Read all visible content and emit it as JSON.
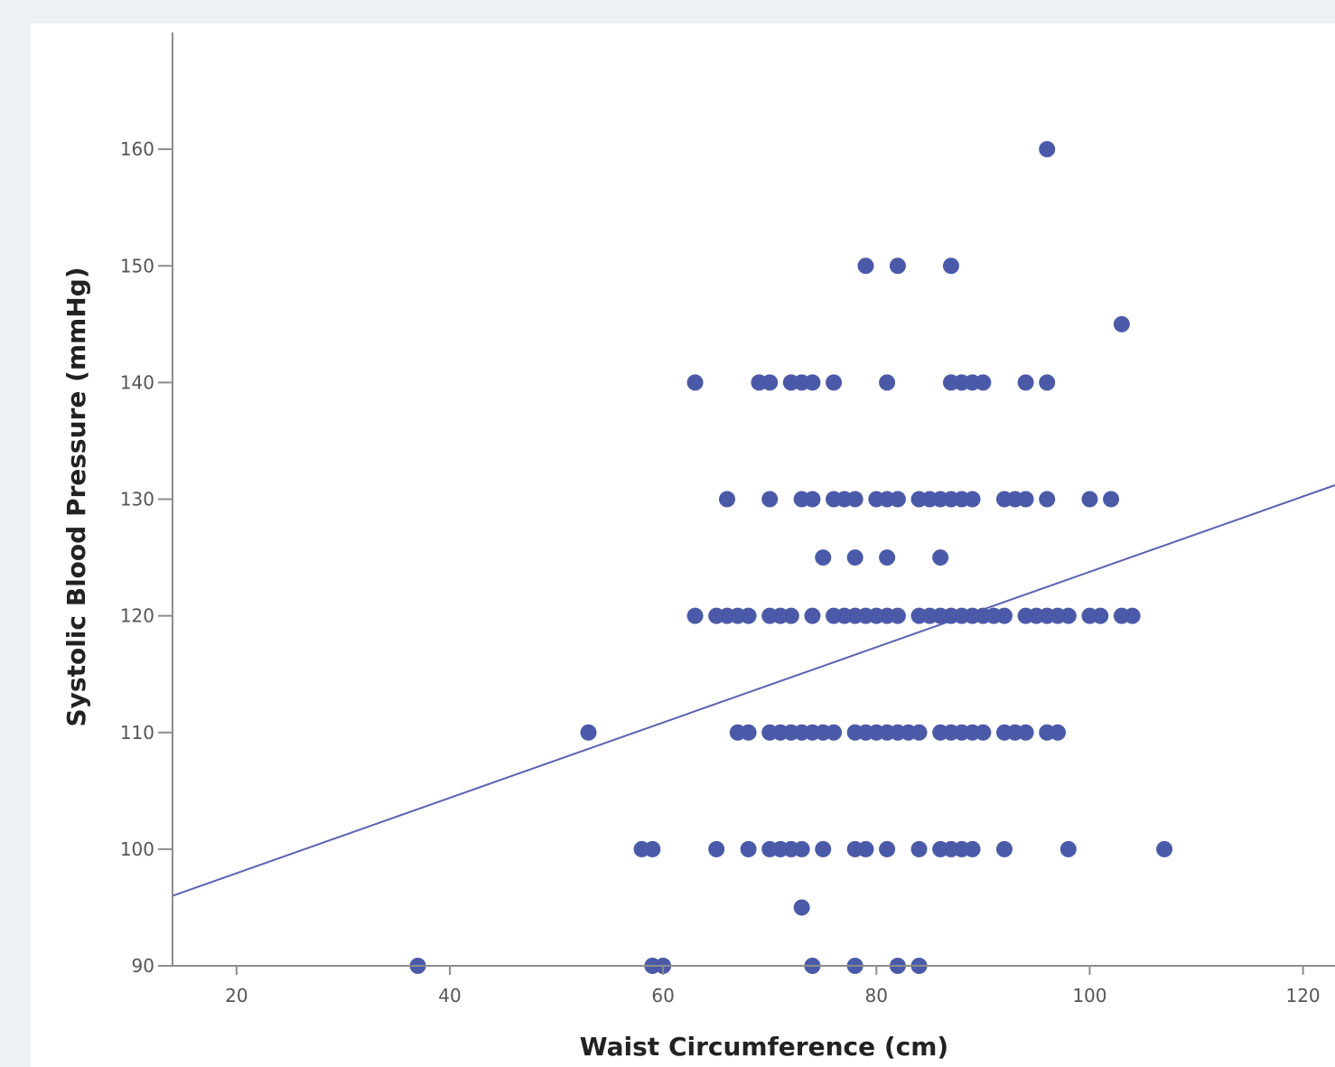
{
  "chart_data": {
    "type": "scatter",
    "title": "",
    "xlabel": "Waist Circumference (cm)",
    "ylabel": "Systolic Blood Pressure (mmHg)",
    "xlim": [
      14,
      123
    ],
    "ylim": [
      90,
      170
    ],
    "x_ticks": [
      20,
      40,
      60,
      80,
      100,
      120
    ],
    "y_ticks": [
      90,
      100,
      110,
      120,
      130,
      140,
      150,
      160
    ],
    "grid": false,
    "legend": "none",
    "point_color": "#4a5aa8",
    "line_color": "#5a63b0",
    "fit_line": {
      "x": [
        14,
        123
      ],
      "y": [
        96,
        131.2
      ]
    },
    "series": [
      {
        "points": [
          [
            96,
            160
          ],
          [
            79,
            150
          ],
          [
            82,
            150
          ],
          [
            87,
            150
          ],
          [
            103,
            145
          ],
          [
            63,
            140
          ],
          [
            69,
            140
          ],
          [
            70,
            140
          ],
          [
            72,
            140
          ],
          [
            73,
            140
          ],
          [
            74,
            140
          ],
          [
            76,
            140
          ],
          [
            81,
            140
          ],
          [
            87,
            140
          ],
          [
            88,
            140
          ],
          [
            89,
            140
          ],
          [
            90,
            140
          ],
          [
            94,
            140
          ],
          [
            96,
            140
          ],
          [
            66,
            130
          ],
          [
            70,
            130
          ],
          [
            73,
            130
          ],
          [
            74,
            130
          ],
          [
            76,
            130
          ],
          [
            77,
            130
          ],
          [
            78,
            130
          ],
          [
            80,
            130
          ],
          [
            81,
            130
          ],
          [
            82,
            130
          ],
          [
            84,
            130
          ],
          [
            85,
            130
          ],
          [
            86,
            130
          ],
          [
            87,
            130
          ],
          [
            88,
            130
          ],
          [
            89,
            130
          ],
          [
            92,
            130
          ],
          [
            93,
            130
          ],
          [
            94,
            130
          ],
          [
            96,
            130
          ],
          [
            100,
            130
          ],
          [
            102,
            130
          ],
          [
            75,
            125
          ],
          [
            78,
            125
          ],
          [
            81,
            125
          ],
          [
            86,
            125
          ],
          [
            63,
            120
          ],
          [
            65,
            120
          ],
          [
            66,
            120
          ],
          [
            67,
            120
          ],
          [
            68,
            120
          ],
          [
            70,
            120
          ],
          [
            71,
            120
          ],
          [
            72,
            120
          ],
          [
            74,
            120
          ],
          [
            76,
            120
          ],
          [
            77,
            120
          ],
          [
            78,
            120
          ],
          [
            79,
            120
          ],
          [
            80,
            120
          ],
          [
            81,
            120
          ],
          [
            82,
            120
          ],
          [
            84,
            120
          ],
          [
            85,
            120
          ],
          [
            86,
            120
          ],
          [
            87,
            120
          ],
          [
            88,
            120
          ],
          [
            89,
            120
          ],
          [
            90,
            120
          ],
          [
            91,
            120
          ],
          [
            92,
            120
          ],
          [
            94,
            120
          ],
          [
            95,
            120
          ],
          [
            96,
            120
          ],
          [
            97,
            120
          ],
          [
            98,
            120
          ],
          [
            100,
            120
          ],
          [
            101,
            120
          ],
          [
            103,
            120
          ],
          [
            104,
            120
          ],
          [
            53,
            110
          ],
          [
            67,
            110
          ],
          [
            68,
            110
          ],
          [
            70,
            110
          ],
          [
            71,
            110
          ],
          [
            72,
            110
          ],
          [
            73,
            110
          ],
          [
            74,
            110
          ],
          [
            75,
            110
          ],
          [
            76,
            110
          ],
          [
            78,
            110
          ],
          [
            79,
            110
          ],
          [
            80,
            110
          ],
          [
            81,
            110
          ],
          [
            82,
            110
          ],
          [
            83,
            110
          ],
          [
            84,
            110
          ],
          [
            86,
            110
          ],
          [
            87,
            110
          ],
          [
            88,
            110
          ],
          [
            89,
            110
          ],
          [
            90,
            110
          ],
          [
            92,
            110
          ],
          [
            93,
            110
          ],
          [
            94,
            110
          ],
          [
            96,
            110
          ],
          [
            97,
            110
          ],
          [
            58,
            100
          ],
          [
            59,
            100
          ],
          [
            65,
            100
          ],
          [
            68,
            100
          ],
          [
            70,
            100
          ],
          [
            71,
            100
          ],
          [
            72,
            100
          ],
          [
            73,
            100
          ],
          [
            75,
            100
          ],
          [
            78,
            100
          ],
          [
            79,
            100
          ],
          [
            81,
            100
          ],
          [
            84,
            100
          ],
          [
            86,
            100
          ],
          [
            87,
            100
          ],
          [
            88,
            100
          ],
          [
            89,
            100
          ],
          [
            92,
            100
          ],
          [
            98,
            100
          ],
          [
            107,
            100
          ],
          [
            73,
            95
          ],
          [
            37,
            90
          ],
          [
            59,
            90
          ],
          [
            60,
            90
          ],
          [
            74,
            90
          ],
          [
            78,
            90
          ],
          [
            82,
            90
          ],
          [
            84,
            90
          ]
        ]
      }
    ]
  }
}
